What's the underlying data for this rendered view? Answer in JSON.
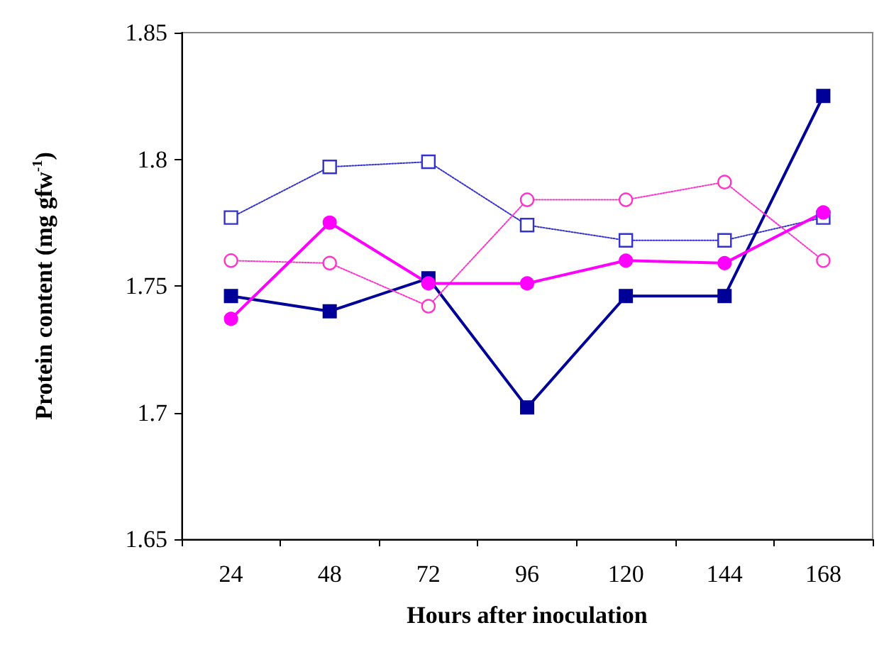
{
  "chart_data": {
    "type": "line",
    "xlabel": "Hours after inoculation",
    "ylabel": "Protein content (mg gfw$^{-1}$)",
    "categories": [
      "24",
      "48",
      "72",
      "96",
      "120",
      "144",
      "168"
    ],
    "series": [
      {
        "color": "#3333cc",
        "marker": "square",
        "line_style": "dotted",
        "values": [
          1.777,
          1.797,
          1.799,
          1.774,
          1.768,
          1.768,
          1.777
        ]
      },
      {
        "color": "#000099",
        "marker": "square",
        "line_style": "solid",
        "values": [
          1.746,
          1.74,
          1.753,
          1.702,
          1.746,
          1.746,
          1.825
        ]
      },
      {
        "color": "#ff33cc",
        "marker": "circle",
        "line_style": "dotted",
        "values": [
          1.76,
          1.759,
          1.742,
          1.784,
          1.784,
          1.791,
          1.76
        ]
      },
      {
        "color": "#ff00ff",
        "marker": "circle",
        "line_style": "solid",
        "values": [
          1.737,
          1.775,
          1.751,
          1.751,
          1.76,
          1.759,
          1.779
        ]
      }
    ],
    "ylim": [
      1.65,
      1.85
    ],
    "yticks": [
      1.65,
      1.7,
      1.75,
      1.8,
      1.85
    ]
  }
}
